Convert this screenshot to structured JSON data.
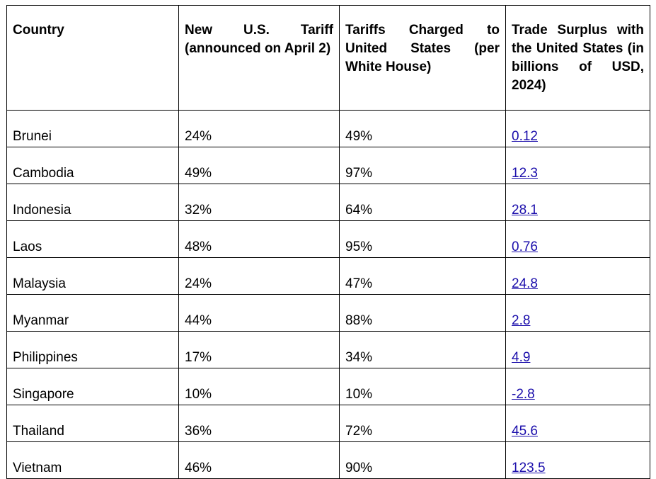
{
  "table": {
    "headers": [
      "Country",
      "New U.S. Tariff (announced on April 2)",
      "Tariffs Charged to United States (per White House)",
      "Trade Surplus with the United States (in billions of USD, 2024)"
    ],
    "rows": [
      {
        "country": "Brunei",
        "new_tariff": "24%",
        "charged": "49%",
        "surplus": "0.12"
      },
      {
        "country": "Cambodia",
        "new_tariff": "49%",
        "charged": "97%",
        "surplus": "12.3"
      },
      {
        "country": "Indonesia",
        "new_tariff": "32%",
        "charged": "64%",
        "surplus": "28.1"
      },
      {
        "country": "Laos",
        "new_tariff": "48%",
        "charged": "95%",
        "surplus": "0.76"
      },
      {
        "country": "Malaysia",
        "new_tariff": "24%",
        "charged": "47%",
        "surplus": "24.8"
      },
      {
        "country": "Myanmar",
        "new_tariff": "44%",
        "charged": "88%",
        "surplus": "2.8"
      },
      {
        "country": "Philippines",
        "new_tariff": "17%",
        "charged": "34%",
        "surplus": "4.9"
      },
      {
        "country": "Singapore",
        "new_tariff": "10%",
        "charged": "10%",
        "surplus": "-2.8"
      },
      {
        "country": "Thailand",
        "new_tariff": "36%",
        "charged": "72%",
        "surplus": "45.6"
      },
      {
        "country": "Vietnam",
        "new_tariff": "46%",
        "charged": "90%",
        "surplus": "123.5"
      }
    ],
    "link_color": "#1a0dab"
  }
}
